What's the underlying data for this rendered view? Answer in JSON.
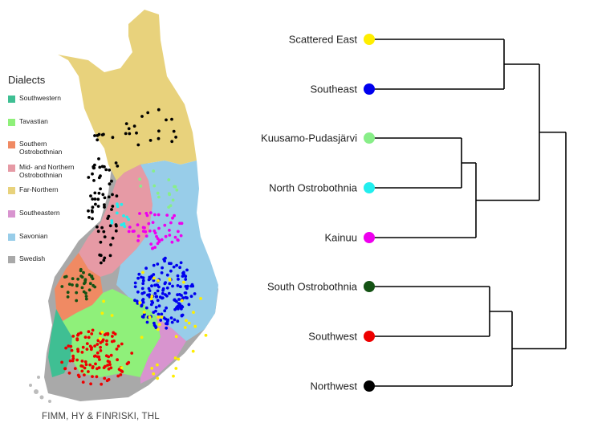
{
  "map": {
    "legend_title": "Dialects",
    "legend": [
      {
        "label": "Southwestern",
        "color": "#3fbf93"
      },
      {
        "label": "Tavastian",
        "color": "#8ff07a"
      },
      {
        "label": "Southern Ostrobothnian",
        "color": "#f08a63"
      },
      {
        "label": "Mid- and Northern Ostrobothnian",
        "color": "#e69aa5"
      },
      {
        "label": "Far-Northern",
        "color": "#e8d27c"
      },
      {
        "label": "Southeastern",
        "color": "#d894cf"
      },
      {
        "label": "Savonian",
        "color": "#98cde9"
      },
      {
        "label": "Swedish",
        "color": "#a9a9a9"
      }
    ],
    "credit": "FIMM, HY & FINRISKI, THL",
    "dot_groups": [
      {
        "name": "Northwest",
        "color": "#000000"
      },
      {
        "name": "Southeast",
        "color": "#0000ee"
      },
      {
        "name": "Southwest",
        "color": "#ee0000"
      },
      {
        "name": "Kainuu",
        "color": "#ee00ee"
      },
      {
        "name": "Scattered East",
        "color": "#ffee00"
      },
      {
        "name": "South Ostrobothnia",
        "color": "#145214"
      },
      {
        "name": "Kuusamo-Pudasjärvi",
        "color": "#88ee88"
      },
      {
        "name": "North Ostrobothnia",
        "color": "#22eeee"
      }
    ]
  },
  "dendrogram": {
    "leaves": [
      {
        "label": "Scattered East",
        "color": "#ffee00"
      },
      {
        "label": "Southeast",
        "color": "#0000ee"
      },
      {
        "label": "Kuusamo-Pudasjärvi",
        "color": "#88ee88"
      },
      {
        "label": "North Ostrobothnia",
        "color": "#22eeee"
      },
      {
        "label": "Kainuu",
        "color": "#ee00ee"
      },
      {
        "label": "South Ostrobothnia",
        "color": "#145214"
      },
      {
        "label": "Southwest",
        "color": "#ee0000"
      },
      {
        "label": "Northwest",
        "color": "#000000"
      }
    ]
  }
}
